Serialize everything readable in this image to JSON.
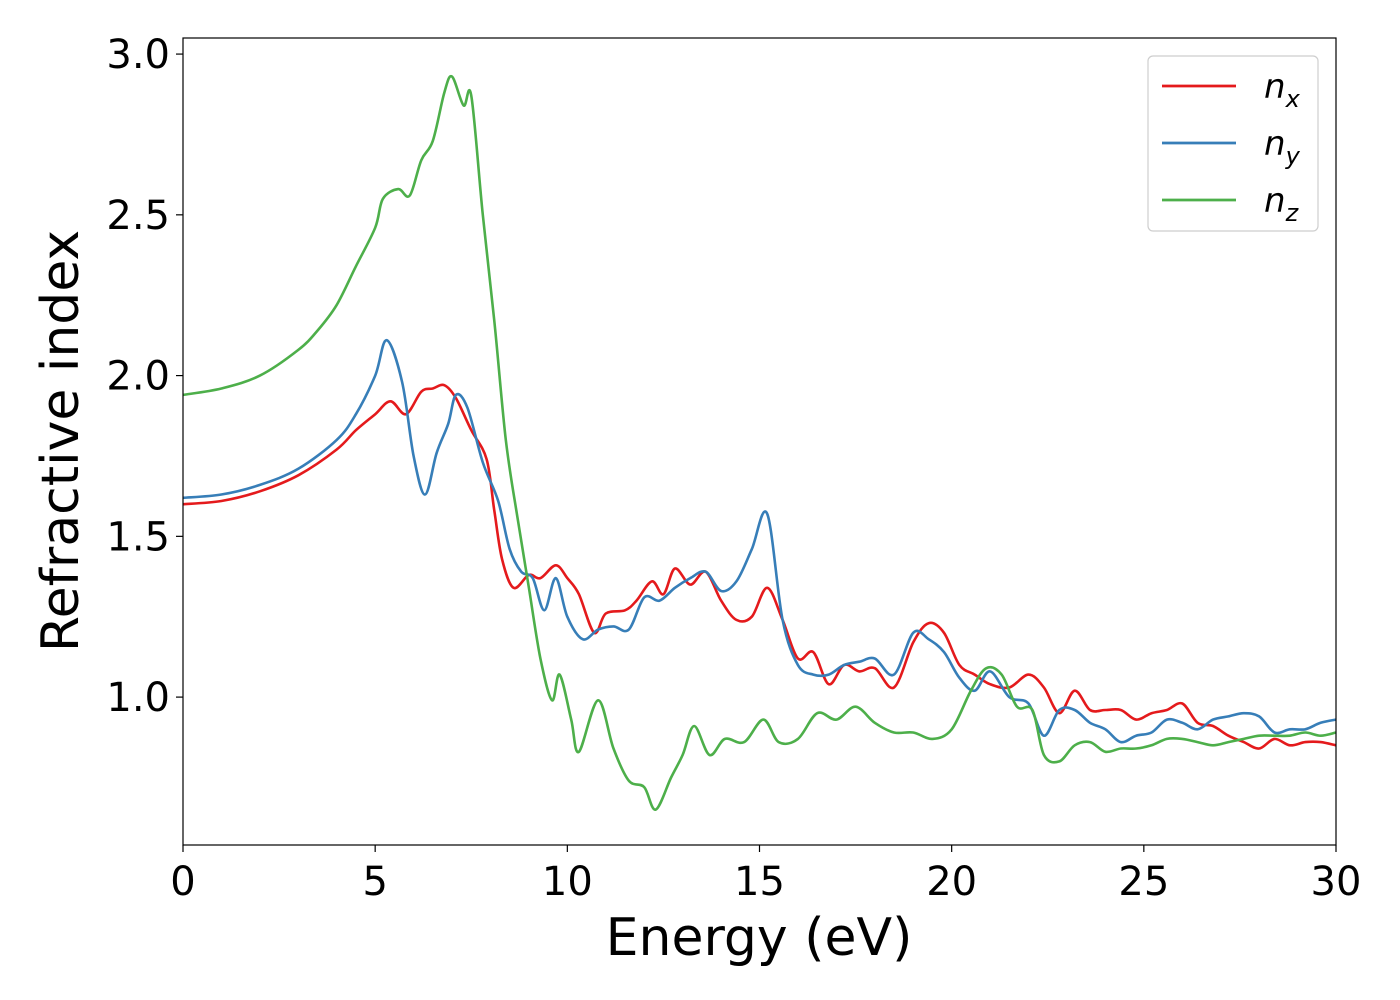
{
  "chart_data": {
    "type": "line",
    "xlabel": "Energy (eV)",
    "ylabel": "Refractive index",
    "xlim": [
      0,
      30
    ],
    "ylim": [
      0.54,
      3.05
    ],
    "xticks": [
      0,
      5,
      10,
      15,
      20,
      25,
      30
    ],
    "xtick_labels": [
      "0",
      "5",
      "10",
      "15",
      "20",
      "25",
      "30"
    ],
    "yticks": [
      1.0,
      1.5,
      2.0,
      2.5,
      3.0
    ],
    "ytick_labels": [
      "1.0",
      "1.5",
      "2.0",
      "2.5",
      "3.0"
    ],
    "grid": false,
    "legend": {
      "placement": "top-right"
    },
    "series": [
      {
        "name": "n_x",
        "label_main": "n",
        "label_sub": "x",
        "color": "#e41a1c",
        "points": [
          [
            0,
            1.6
          ],
          [
            1,
            1.61
          ],
          [
            2,
            1.64
          ],
          [
            3,
            1.69
          ],
          [
            4,
            1.77
          ],
          [
            4.5,
            1.83
          ],
          [
            5,
            1.88
          ],
          [
            5.4,
            1.92
          ],
          [
            5.8,
            1.88
          ],
          [
            6.2,
            1.95
          ],
          [
            6.5,
            1.96
          ],
          [
            6.8,
            1.97
          ],
          [
            7.1,
            1.93
          ],
          [
            7.5,
            1.83
          ],
          [
            7.9,
            1.74
          ],
          [
            8.1,
            1.58
          ],
          [
            8.3,
            1.43
          ],
          [
            8.6,
            1.34
          ],
          [
            9.0,
            1.38
          ],
          [
            9.3,
            1.37
          ],
          [
            9.7,
            1.41
          ],
          [
            10.0,
            1.37
          ],
          [
            10.3,
            1.32
          ],
          [
            10.7,
            1.2
          ],
          [
            11.0,
            1.26
          ],
          [
            11.5,
            1.27
          ],
          [
            11.8,
            1.3
          ],
          [
            12.2,
            1.36
          ],
          [
            12.5,
            1.32
          ],
          [
            12.8,
            1.4
          ],
          [
            13.2,
            1.35
          ],
          [
            13.6,
            1.39
          ],
          [
            14.0,
            1.3
          ],
          [
            14.4,
            1.24
          ],
          [
            14.8,
            1.25
          ],
          [
            15.2,
            1.34
          ],
          [
            15.6,
            1.24
          ],
          [
            16.0,
            1.12
          ],
          [
            16.4,
            1.14
          ],
          [
            16.8,
            1.04
          ],
          [
            17.2,
            1.1
          ],
          [
            17.6,
            1.08
          ],
          [
            18.0,
            1.09
          ],
          [
            18.5,
            1.03
          ],
          [
            19.0,
            1.17
          ],
          [
            19.4,
            1.23
          ],
          [
            19.8,
            1.2
          ],
          [
            20.2,
            1.1
          ],
          [
            20.6,
            1.07
          ],
          [
            21.0,
            1.04
          ],
          [
            21.5,
            1.03
          ],
          [
            22.0,
            1.07
          ],
          [
            22.4,
            1.03
          ],
          [
            22.8,
            0.95
          ],
          [
            23.2,
            1.02
          ],
          [
            23.6,
            0.96
          ],
          [
            24.0,
            0.96
          ],
          [
            24.4,
            0.96
          ],
          [
            24.8,
            0.93
          ],
          [
            25.2,
            0.95
          ],
          [
            25.6,
            0.96
          ],
          [
            26.0,
            0.98
          ],
          [
            26.4,
            0.92
          ],
          [
            26.8,
            0.91
          ],
          [
            27.2,
            0.88
          ],
          [
            27.6,
            0.86
          ],
          [
            28.0,
            0.84
          ],
          [
            28.4,
            0.87
          ],
          [
            28.8,
            0.85
          ],
          [
            29.2,
            0.86
          ],
          [
            29.6,
            0.86
          ],
          [
            30.0,
            0.85
          ]
        ]
      },
      {
        "name": "n_y",
        "label_main": "n",
        "label_sub": "y",
        "color": "#377eb8",
        "points": [
          [
            0,
            1.62
          ],
          [
            1,
            1.63
          ],
          [
            2,
            1.66
          ],
          [
            3,
            1.71
          ],
          [
            4,
            1.8
          ],
          [
            4.5,
            1.88
          ],
          [
            5,
            2.0
          ],
          [
            5.3,
            2.11
          ],
          [
            5.7,
            1.98
          ],
          [
            6.0,
            1.75
          ],
          [
            6.3,
            1.63
          ],
          [
            6.6,
            1.76
          ],
          [
            6.9,
            1.85
          ],
          [
            7.1,
            1.94
          ],
          [
            7.4,
            1.9
          ],
          [
            7.8,
            1.73
          ],
          [
            8.2,
            1.61
          ],
          [
            8.5,
            1.46
          ],
          [
            8.8,
            1.39
          ],
          [
            9.1,
            1.37
          ],
          [
            9.4,
            1.27
          ],
          [
            9.7,
            1.37
          ],
          [
            10.0,
            1.25
          ],
          [
            10.4,
            1.18
          ],
          [
            10.8,
            1.21
          ],
          [
            11.2,
            1.22
          ],
          [
            11.6,
            1.21
          ],
          [
            12.0,
            1.31
          ],
          [
            12.4,
            1.3
          ],
          [
            12.8,
            1.34
          ],
          [
            13.2,
            1.37
          ],
          [
            13.6,
            1.39
          ],
          [
            14.0,
            1.33
          ],
          [
            14.4,
            1.36
          ],
          [
            14.8,
            1.46
          ],
          [
            15.2,
            1.57
          ],
          [
            15.6,
            1.24
          ],
          [
            16.0,
            1.1
          ],
          [
            16.4,
            1.07
          ],
          [
            16.8,
            1.07
          ],
          [
            17.2,
            1.1
          ],
          [
            17.6,
            1.11
          ],
          [
            18.0,
            1.12
          ],
          [
            18.5,
            1.07
          ],
          [
            19.0,
            1.2
          ],
          [
            19.4,
            1.18
          ],
          [
            19.8,
            1.14
          ],
          [
            20.2,
            1.06
          ],
          [
            20.6,
            1.02
          ],
          [
            21.0,
            1.08
          ],
          [
            21.5,
            1.0
          ],
          [
            22.0,
            0.98
          ],
          [
            22.4,
            0.88
          ],
          [
            22.8,
            0.96
          ],
          [
            23.2,
            0.96
          ],
          [
            23.6,
            0.92
          ],
          [
            24.0,
            0.9
          ],
          [
            24.4,
            0.86
          ],
          [
            24.8,
            0.88
          ],
          [
            25.2,
            0.89
          ],
          [
            25.6,
            0.93
          ],
          [
            26.0,
            0.92
          ],
          [
            26.4,
            0.9
          ],
          [
            26.8,
            0.93
          ],
          [
            27.2,
            0.94
          ],
          [
            27.6,
            0.95
          ],
          [
            28.0,
            0.94
          ],
          [
            28.4,
            0.89
          ],
          [
            28.8,
            0.9
          ],
          [
            29.2,
            0.9
          ],
          [
            29.6,
            0.92
          ],
          [
            30.0,
            0.93
          ]
        ]
      },
      {
        "name": "n_z",
        "label_main": "n",
        "label_sub": "z",
        "color": "#4daf4a",
        "points": [
          [
            0,
            1.94
          ],
          [
            1,
            1.96
          ],
          [
            2,
            2.0
          ],
          [
            3,
            2.08
          ],
          [
            3.5,
            2.14
          ],
          [
            4,
            2.22
          ],
          [
            4.5,
            2.34
          ],
          [
            5,
            2.46
          ],
          [
            5.2,
            2.55
          ],
          [
            5.6,
            2.58
          ],
          [
            5.9,
            2.56
          ],
          [
            6.2,
            2.67
          ],
          [
            6.5,
            2.73
          ],
          [
            6.8,
            2.88
          ],
          [
            7.0,
            2.93
          ],
          [
            7.3,
            2.84
          ],
          [
            7.5,
            2.87
          ],
          [
            7.8,
            2.5
          ],
          [
            8.1,
            2.17
          ],
          [
            8.4,
            1.8
          ],
          [
            8.7,
            1.56
          ],
          [
            9.0,
            1.34
          ],
          [
            9.3,
            1.12
          ],
          [
            9.6,
            0.99
          ],
          [
            9.8,
            1.07
          ],
          [
            10.1,
            0.93
          ],
          [
            10.3,
            0.83
          ],
          [
            10.8,
            0.99
          ],
          [
            11.2,
            0.84
          ],
          [
            11.6,
            0.74
          ],
          [
            12.0,
            0.72
          ],
          [
            12.3,
            0.65
          ],
          [
            12.7,
            0.75
          ],
          [
            13.0,
            0.82
          ],
          [
            13.3,
            0.91
          ],
          [
            13.7,
            0.82
          ],
          [
            14.1,
            0.87
          ],
          [
            14.6,
            0.86
          ],
          [
            15.1,
            0.93
          ],
          [
            15.5,
            0.86
          ],
          [
            16.0,
            0.87
          ],
          [
            16.5,
            0.95
          ],
          [
            17.0,
            0.93
          ],
          [
            17.5,
            0.97
          ],
          [
            18.0,
            0.92
          ],
          [
            18.5,
            0.89
          ],
          [
            19.0,
            0.89
          ],
          [
            19.5,
            0.87
          ],
          [
            20.0,
            0.9
          ],
          [
            20.5,
            1.02
          ],
          [
            20.9,
            1.09
          ],
          [
            21.3,
            1.07
          ],
          [
            21.7,
            0.97
          ],
          [
            22.1,
            0.96
          ],
          [
            22.4,
            0.82
          ],
          [
            22.8,
            0.8
          ],
          [
            23.2,
            0.85
          ],
          [
            23.6,
            0.86
          ],
          [
            24.0,
            0.83
          ],
          [
            24.4,
            0.84
          ],
          [
            24.8,
            0.84
          ],
          [
            25.2,
            0.85
          ],
          [
            25.6,
            0.87
          ],
          [
            26.0,
            0.87
          ],
          [
            26.4,
            0.86
          ],
          [
            26.8,
            0.85
          ],
          [
            27.2,
            0.86
          ],
          [
            27.6,
            0.87
          ],
          [
            28.0,
            0.88
          ],
          [
            28.4,
            0.88
          ],
          [
            28.8,
            0.88
          ],
          [
            29.2,
            0.89
          ],
          [
            29.6,
            0.88
          ],
          [
            30.0,
            0.89
          ]
        ]
      }
    ]
  }
}
